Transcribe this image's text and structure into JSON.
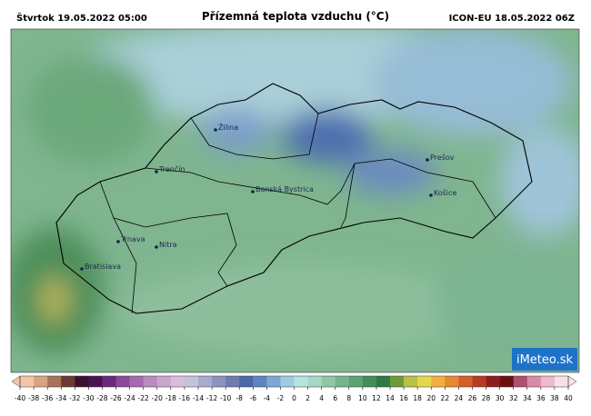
{
  "header": {
    "date": "Štvrtok 19.05.2022 05:00",
    "title": "Přízemná teplota vzduchu (°C)",
    "model": "ICON-EU 18.05.2022 06Z"
  },
  "cities": [
    "Žilina",
    "Prešov",
    "Trenčín",
    "Banská Bystrica",
    "Košice",
    "Trnava",
    "Nitra",
    "Bratislava"
  ],
  "colorbar": {
    "ticks": [
      -40,
      -38,
      -36,
      -34,
      -32,
      -30,
      -28,
      -26,
      -24,
      -22,
      -20,
      -18,
      -16,
      -14,
      -12,
      -10,
      -8,
      -6,
      -4,
      -2,
      0,
      2,
      4,
      6,
      8,
      10,
      12,
      14,
      16,
      18,
      20,
      22,
      24,
      26,
      28,
      30,
      32,
      34,
      36,
      38,
      40
    ],
    "colors": [
      "#f2c6a8",
      "#d9a382",
      "#a9735a",
      "#6b3a36",
      "#3a1230",
      "#4a1450",
      "#6a2a7a",
      "#8a4a9a",
      "#a46aae",
      "#b98ac0",
      "#c9a6cf",
      "#d7bfdc",
      "#c4c3dc",
      "#a9abce",
      "#8c93bf",
      "#6e7cb0",
      "#4d66a4",
      "#5d86c0",
      "#7ea8d2",
      "#9fcbe0",
      "#b7e3e0",
      "#a8d8c4",
      "#8fc7a8",
      "#75b58e",
      "#5aa272",
      "#3f8d58",
      "#2f7a44",
      "#6f9a3a",
      "#b6c24a",
      "#e6d84a",
      "#f0b040",
      "#e58a30",
      "#d2602a",
      "#b83a26",
      "#8e1e1e",
      "#6a1010",
      "#b05070",
      "#d98aa6",
      "#eeb9cc",
      "#f8e2ea"
    ]
  },
  "logo": "iMeteo.sk"
}
